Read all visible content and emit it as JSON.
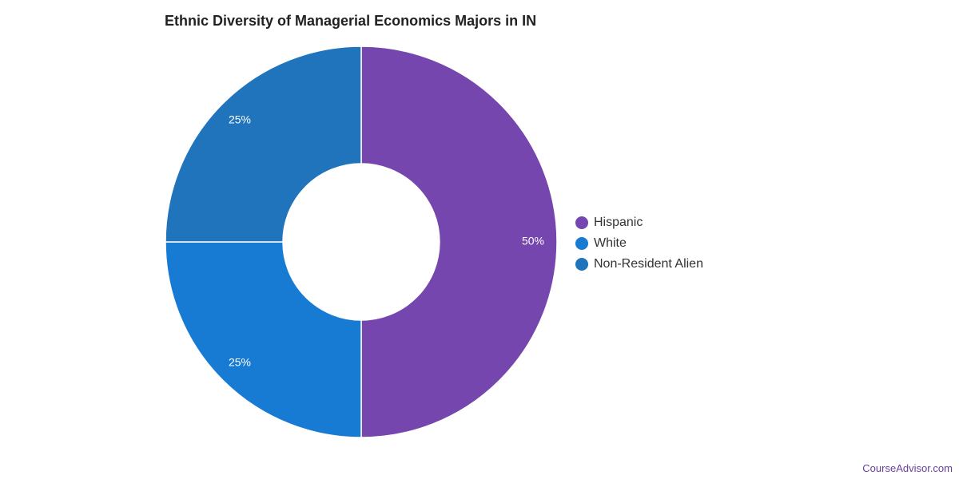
{
  "chart_data": {
    "type": "pie",
    "title": "Ethnic Diversity of Managerial Economics Majors in IN",
    "series": [
      {
        "name": "Hispanic",
        "value": 50,
        "label": "50%",
        "color": "#7446ae"
      },
      {
        "name": "White",
        "value": 25,
        "label": "25%",
        "color": "#177bd4"
      },
      {
        "name": "Non-Resident Alien",
        "value": 25,
        "label": "25%",
        "color": "#1f74bc"
      }
    ],
    "donut": true,
    "legend_position": "right"
  },
  "footer": {
    "source": "CourseAdvisor.com"
  }
}
